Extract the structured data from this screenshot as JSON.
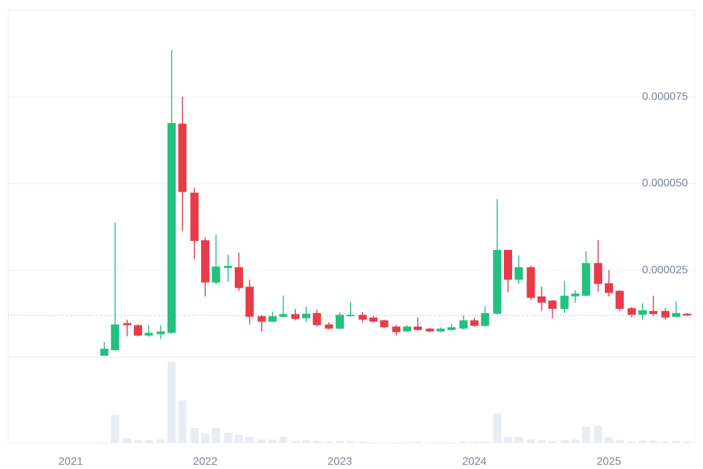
{
  "chart_data": {
    "type": "candlestick",
    "x": [
      2021.25,
      2021.33,
      2021.42,
      2021.5,
      2021.58,
      2021.67,
      2021.75,
      2021.83,
      2021.92,
      2022,
      2022.08,
      2022.17,
      2022.25,
      2022.33,
      2022.42,
      2022.5,
      2022.58,
      2022.67,
      2022.75,
      2022.83,
      2022.92,
      2023,
      2023.08,
      2023.17,
      2023.25,
      2023.33,
      2023.42,
      2023.5,
      2023.58,
      2023.67,
      2023.75,
      2023.83,
      2023.92,
      2024,
      2024.08,
      2024.17,
      2024.25,
      2024.33,
      2024.42,
      2024.5,
      2024.58,
      2024.67,
      2024.75,
      2024.83,
      2024.92,
      2025,
      2025.08,
      2025.17,
      2025.25,
      2025.33,
      2025.42,
      2025.5,
      2025.58
    ],
    "open": [
      4e-07,
      2e-06,
      9.8e-06,
      9.2e-06,
      6.2e-06,
      6.6e-06,
      7e-06,
      6.73e-05,
      4.74e-05,
      3.37e-05,
      2.15e-05,
      2.57e-05,
      2.59e-05,
      2.03e-05,
      1.18e-05,
      1.02e-05,
      1.16e-05,
      1.24e-05,
      1.12e-05,
      1.27e-05,
      9.4e-06,
      8.2e-06,
      1.18e-05,
      1.22e-05,
      1.14e-05,
      1.06e-05,
      8.8e-06,
      7.4e-06,
      8.8e-06,
      8.2e-06,
      7.4e-06,
      7.8e-06,
      8.2e-06,
      1.06e-05,
      9e-06,
      1.25e-05,
      3.09e-05,
      2.23e-05,
      2.59e-05,
      1.75e-05,
      1.63e-05,
      1.39e-05,
      1.75e-05,
      1.77e-05,
      2.71e-05,
      2.13e-05,
      1.91e-05,
      1.41e-05,
      1.22e-05,
      1.33e-05,
      1.33e-05,
      1.16e-05,
      1.25e-05
    ],
    "high": [
      4.4e-06,
      3.88e-05,
      1.08e-05,
      9.4e-06,
      9.2e-06,
      9.2e-06,
      8.86e-05,
      7.51e-05,
      4.88e-05,
      3.45e-05,
      3.53e-05,
      2.95e-05,
      3.01e-05,
      2.23e-05,
      1.22e-05,
      1.31e-05,
      1.77e-05,
      1.39e-05,
      1.45e-05,
      1.37e-05,
      1e-05,
      1.29e-05,
      1.59e-05,
      1.29e-05,
      1.18e-05,
      1.08e-05,
      9.2e-06,
      9.2e-06,
      1.14e-05,
      8.4e-06,
      8.6e-06,
      9.6e-06,
      1.2e-05,
      1.14e-05,
      1.47e-05,
      4.56e-05,
      3.09e-05,
      2.93e-05,
      2.63e-05,
      2.03e-05,
      1.65e-05,
      2.19e-05,
      1.93e-05,
      3.05e-05,
      3.37e-05,
      2.51e-05,
      1.93e-05,
      1.45e-05,
      1.55e-05,
      1.77e-05,
      1.41e-05,
      1.61e-05,
      1.27e-05
    ],
    "low": [
      4e-07,
      1.8e-06,
      6e-06,
      6e-06,
      5.8e-06,
      5.2e-06,
      6.8e-06,
      3.63e-05,
      2.83e-05,
      1.75e-05,
      2.09e-05,
      2.17e-05,
      1.91e-05,
      9.4e-06,
      7.4e-06,
      1e-05,
      1.14e-05,
      1.06e-05,
      1e-05,
      8.8e-06,
      8e-06,
      8e-06,
      1.16e-05,
      1e-05,
      1e-05,
      8.4e-06,
      6.2e-06,
      7.2e-06,
      7.6e-06,
      7.2e-06,
      7.2e-06,
      7.6e-06,
      8e-06,
      8.8e-06,
      8.8e-06,
      1.22e-05,
      1.87e-05,
      2.11e-05,
      1.65e-05,
      1.33e-05,
      1.12e-05,
      1.27e-05,
      1.57e-05,
      1.75e-05,
      1.89e-05,
      1.75e-05,
      1.33e-05,
      1.14e-05,
      1.08e-05,
      1.2e-05,
      1.08e-05,
      1.14e-05,
      1.18e-05
    ],
    "close": [
      2.4e-06,
      9.4e-06,
      9.2e-06,
      6.2e-06,
      7e-06,
      7.4e-06,
      6.75e-05,
      4.76e-05,
      3.35e-05,
      2.15e-05,
      2.61e-05,
      2.63e-05,
      1.99e-05,
      1.16e-05,
      1.02e-05,
      1.18e-05,
      1.24e-05,
      1.1e-05,
      1.25e-05,
      9.2e-06,
      8.2e-06,
      1.22e-05,
      1.22e-05,
      1.08e-05,
      1.02e-05,
      8.6e-06,
      7.2e-06,
      8.8e-06,
      7.8e-06,
      7.4e-06,
      8.2e-06,
      8.6e-06,
      1.06e-05,
      9e-06,
      1.27e-05,
      3.09e-05,
      2.23e-05,
      2.59e-05,
      1.71e-05,
      1.57e-05,
      1.39e-05,
      1.77e-05,
      1.83e-05,
      2.71e-05,
      2.11e-05,
      1.85e-05,
      1.39e-05,
      1.22e-05,
      1.35e-05,
      1.24e-05,
      1.14e-05,
      1.27e-05,
      1.2e-05
    ],
    "volume": [
      1,
      41,
      7,
      4,
      4,
      5,
      118,
      62,
      22,
      14,
      22,
      15,
      12,
      9,
      5,
      5,
      9,
      3,
      4,
      3,
      2,
      3,
      3,
      2,
      1,
      0,
      1,
      1,
      2,
      0,
      1,
      1,
      2,
      2,
      2,
      43,
      9,
      9,
      5,
      4,
      3,
      4,
      5,
      24,
      25,
      8,
      4,
      2,
      3,
      3,
      2,
      3,
      2
    ],
    "up_color": "#22c17f",
    "down_color": "#e83b4a",
    "volume_color": "#e9edf3",
    "xlim": [
      2020.536,
      2025.638
    ],
    "xticks": [
      2021,
      2022,
      2023,
      2024,
      2025
    ],
    "ylim": [
      0,
      0.0001
    ],
    "yticks": [
      2.5e-05,
      {
        "value": 5e-05,
        "label": "0.000050"
      },
      7.5e-05
    ],
    "volume_ylim": [
      0,
      125
    ],
    "grid": true
  }
}
